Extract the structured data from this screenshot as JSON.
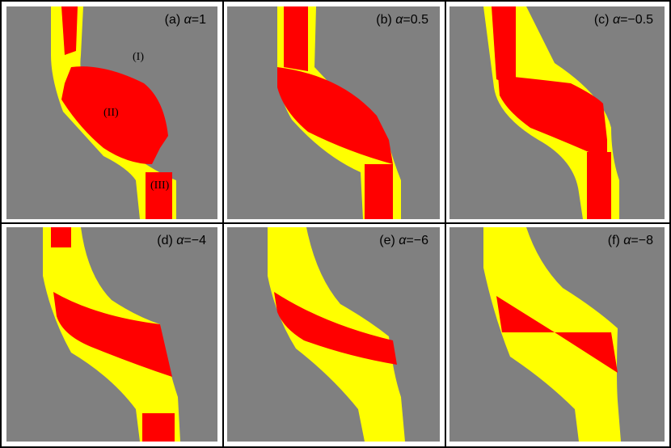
{
  "colors": {
    "background_region": "#808080",
    "region_yellow": "#ffff00",
    "region_red": "#ff0000",
    "frame": "#000000"
  },
  "panels": [
    {
      "id": "a",
      "prefix": "(a) ",
      "alpha_symbol": "α",
      "value": "=1",
      "regions": [
        "(I)",
        "(II)",
        "(III)"
      ]
    },
    {
      "id": "b",
      "prefix": "(b) ",
      "alpha_symbol": "α",
      "value": "=0.5",
      "regions": []
    },
    {
      "id": "c",
      "prefix": "(c) ",
      "alpha_symbol": "α",
      "value": "=−0.5",
      "regions": []
    },
    {
      "id": "d",
      "prefix": "(d) ",
      "alpha_symbol": "α",
      "value": "=−4",
      "regions": []
    },
    {
      "id": "e",
      "prefix": "(e) ",
      "alpha_symbol": "α",
      "value": "=−6",
      "regions": []
    },
    {
      "id": "f",
      "prefix": "(f) ",
      "alpha_symbol": "α",
      "value": "=−8",
      "regions": []
    }
  ]
}
